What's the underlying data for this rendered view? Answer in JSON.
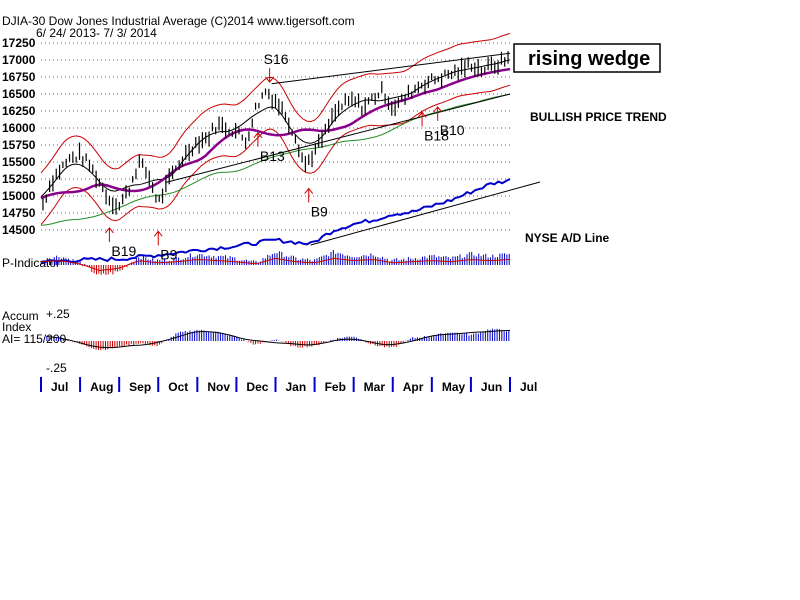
{
  "header": {
    "title": "DJIA-30  Dow Jones Industrial Average   (C)2014 www.tigersoft.com",
    "date_range": "6/ 24/ 2013- 7/ 3/ 2014"
  },
  "annotations": {
    "wedge_label": "rising wedge",
    "trend_label": "BULLISH PRICE TREND",
    "ad_label": "NYSE A/D Line",
    "p_indicator_label": "P-Indicator",
    "accum_label_1": "Accum",
    "accum_label_2": "Index",
    "ai_label": "AI= 115/200",
    "accum_top": "+.25",
    "accum_bottom": "-.25"
  },
  "signals": [
    {
      "label": "B19",
      "month_pos": 1.75
    },
    {
      "label": "B9",
      "month_pos": 3.0
    },
    {
      "label": "B13",
      "month_pos": 5.55
    },
    {
      "label": "S16",
      "month_pos": 5.85
    },
    {
      "label": "B9",
      "month_pos": 6.85
    },
    {
      "label": "B18",
      "month_pos": 9.75
    },
    {
      "label": "B10",
      "month_pos": 10.15
    }
  ],
  "chart_data": {
    "type": "line",
    "title": "DJIA-30  Dow Jones Industrial Average",
    "ylim": [
      14500,
      17250
    ],
    "y_ticks": [
      17250,
      17000,
      16750,
      16500,
      16250,
      16000,
      15750,
      15500,
      15250,
      15000,
      14750,
      14500
    ],
    "months": [
      "Jul",
      "Aug",
      "Sep",
      "Oct",
      "Nov",
      "Dec",
      "Jan",
      "Feb",
      "Mar",
      "Apr",
      "May",
      "Jun",
      "Jul"
    ],
    "price_series": {
      "name": "DJIA",
      "x": [
        0,
        0.25,
        0.5,
        0.75,
        1.0,
        1.25,
        1.5,
        1.75,
        2.0,
        2.25,
        2.5,
        2.75,
        3.0,
        3.25,
        3.5,
        3.75,
        4.0,
        4.25,
        4.5,
        4.75,
        5.0,
        5.25,
        5.5,
        5.75,
        6.0,
        6.25,
        6.5,
        6.75,
        7.0,
        7.25,
        7.5,
        7.75,
        8.0,
        8.25,
        8.5,
        8.75,
        9.0,
        9.25,
        9.5,
        9.75,
        10.0,
        10.25,
        10.5,
        10.75,
        11.0,
        11.25,
        11.5,
        11.75,
        12.0
      ],
      "values": [
        14800,
        15200,
        15400,
        15550,
        15600,
        15450,
        15200,
        14950,
        14850,
        15100,
        15500,
        15300,
        14900,
        15200,
        15450,
        15650,
        15800,
        15850,
        16050,
        16000,
        15950,
        15800,
        16300,
        16550,
        16400,
        16200,
        15900,
        15450,
        15650,
        15900,
        16200,
        16350,
        16400,
        16300,
        16450,
        16550,
        16300,
        16400,
        16550,
        16650,
        16700,
        16750,
        16800,
        16850,
        16950,
        16850,
        16900,
        16950,
        17050
      ]
    },
    "ad_line": {
      "name": "NYSE A/D Line",
      "x": [
        0,
        1,
        2,
        3,
        4,
        5,
        6,
        6.9,
        7.5,
        8,
        8.5,
        9,
        9.5,
        10,
        10.5,
        11,
        11.5,
        12
      ],
      "values": [
        0,
        0.02,
        0.03,
        0.07,
        0.12,
        0.16,
        0.22,
        0.18,
        0.32,
        0.38,
        0.42,
        0.48,
        0.5,
        0.56,
        0.62,
        0.7,
        0.78,
        0.82
      ]
    },
    "p_indicator": {
      "name": "P-Indicator",
      "x": [
        0,
        0.5,
        1,
        1.5,
        2,
        2.5,
        3,
        3.5,
        4,
        4.5,
        5,
        5.5,
        6,
        6.5,
        7,
        7.5,
        8,
        8.5,
        9,
        9.5,
        10,
        10.5,
        11,
        11.5,
        12
      ],
      "values": [
        0.3,
        0.4,
        0.1,
        -0.5,
        -0.3,
        0.4,
        0.2,
        0.3,
        0.5,
        0.4,
        0.3,
        0.1,
        0.6,
        0.3,
        0.2,
        0.6,
        0.4,
        0.5,
        0.2,
        0.3,
        0.4,
        0.3,
        0.5,
        0.4,
        0.5
      ]
    },
    "accum_index": {
      "name": "Accum Index",
      "ylim": [
        -0.25,
        0.25
      ],
      "x": [
        0,
        0.5,
        1,
        1.5,
        2,
        2.5,
        3,
        3.5,
        4,
        4.5,
        5,
        5.5,
        6,
        6.5,
        7,
        7.5,
        8,
        8.5,
        9,
        9.5,
        10,
        10.5,
        11,
        11.5,
        12
      ],
      "values": [
        0.05,
        0.04,
        -0.03,
        -0.09,
        -0.06,
        -0.02,
        -0.05,
        0.08,
        0.11,
        0.09,
        0.04,
        -0.04,
        0.02,
        -0.06,
        -0.05,
        0.02,
        0.05,
        -0.04,
        -0.07,
        0.03,
        0.05,
        0.09,
        0.06,
        0.12,
        0.1
      ]
    }
  }
}
